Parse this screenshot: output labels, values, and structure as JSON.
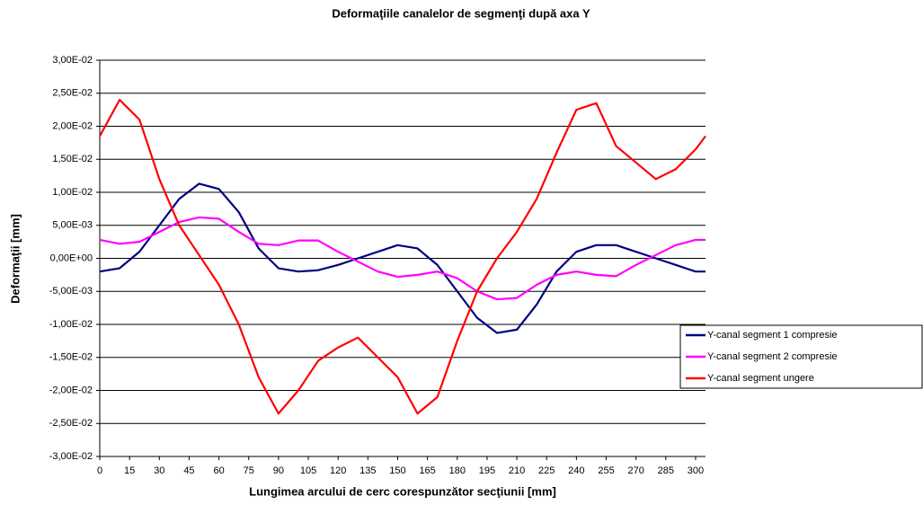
{
  "chart_data": {
    "type": "line",
    "title": "Deformaţiile canalelor de segmenţi după axa Y",
    "x_label": "Lungimea arcului de cerc corespunzător secţiunii [mm]",
    "y_label": "Deformaţii [mm]",
    "x": [
      0,
      10,
      20,
      30,
      40,
      50,
      60,
      70,
      80,
      90,
      100,
      110,
      120,
      130,
      140,
      150,
      160,
      170,
      180,
      190,
      200,
      210,
      220,
      230,
      240,
      250,
      260,
      270,
      280,
      290,
      300,
      305
    ],
    "series": [
      {
        "name": "Y-canal segment 1 compresie",
        "color": "#000080",
        "values": [
          -0.002,
          -0.0015,
          0.001,
          0.005,
          0.009,
          0.0113,
          0.0105,
          0.007,
          0.0015,
          -0.0015,
          -0.002,
          -0.0018,
          -0.001,
          0,
          0.001,
          0.002,
          0.0015,
          -0.001,
          -0.005,
          -0.009,
          -0.0113,
          -0.0108,
          -0.007,
          -0.002,
          0.001,
          0.002,
          0.002,
          0.001,
          0,
          -0.001,
          -0.002,
          -0.002
        ]
      },
      {
        "name": "Y-canal segment 2 compresie",
        "color": "#ff00ff",
        "values": [
          0.0028,
          0.0022,
          0.0025,
          0.004,
          0.0055,
          0.0062,
          0.006,
          0.004,
          0.0022,
          0.002,
          0.0027,
          0.0027,
          0.001,
          -0.0005,
          -0.002,
          -0.0028,
          -0.0025,
          -0.002,
          -0.003,
          -0.005,
          -0.0062,
          -0.006,
          -0.004,
          -0.0025,
          -0.002,
          -0.0025,
          -0.0027,
          -0.001,
          0.0005,
          0.002,
          0.0028,
          0.0028
        ]
      },
      {
        "name": "Y-canal segment ungere",
        "color": "#ff0000",
        "values": [
          0.0185,
          0.024,
          0.021,
          0.012,
          0.005,
          0.0005,
          -0.004,
          -0.01,
          -0.018,
          -0.0235,
          -0.02,
          -0.0155,
          -0.0135,
          -0.012,
          -0.015,
          -0.018,
          -0.0235,
          -0.021,
          -0.0125,
          -0.005,
          0,
          0.004,
          0.009,
          0.016,
          0.0225,
          0.0235,
          0.017,
          0.0145,
          0.012,
          0.0135,
          0.0165,
          0.0185
        ]
      }
    ],
    "xlim": [
      0,
      305
    ],
    "xticks": [
      0,
      15,
      30,
      45,
      60,
      75,
      90,
      105,
      120,
      135,
      150,
      165,
      180,
      195,
      210,
      225,
      240,
      255,
      270,
      285,
      300
    ],
    "ylim": [
      -0.03,
      0.03
    ],
    "yticks": [
      {
        "value": -0.03,
        "label": "-3,00E-02"
      },
      {
        "value": -0.025,
        "label": "-2,50E-02"
      },
      {
        "value": -0.02,
        "label": "-2,00E-02"
      },
      {
        "value": -0.015,
        "label": "-1,50E-02"
      },
      {
        "value": -0.01,
        "label": "-1,00E-02"
      },
      {
        "value": -0.005,
        "label": "-5,00E-03"
      },
      {
        "value": 0,
        "label": "0,00E+00"
      },
      {
        "value": 0.005,
        "label": "5,00E-03"
      },
      {
        "value": 0.01,
        "label": "1,00E-02"
      },
      {
        "value": 0.015,
        "label": "1,50E-02"
      },
      {
        "value": 0.02,
        "label": "2,00E-02"
      },
      {
        "value": 0.025,
        "label": "2,50E-02"
      },
      {
        "value": 0.03,
        "label": "3,00E-02"
      }
    ],
    "grid": true,
    "legend": "right"
  }
}
